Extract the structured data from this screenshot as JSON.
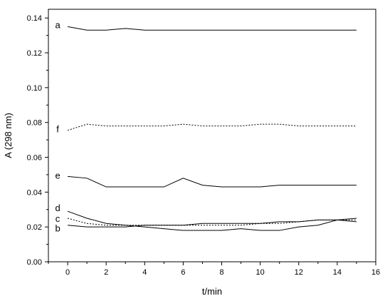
{
  "chart_data": {
    "type": "line",
    "xlabel": "t/min",
    "ylabel": "A (298 nm)",
    "xlim": [
      -1,
      16
    ],
    "ylim": [
      0,
      0.145
    ],
    "x_ticks": [
      "0",
      "2",
      "4",
      "6",
      "8",
      "10",
      "12",
      "14",
      "16"
    ],
    "y_ticks": [
      "0.00",
      "0.02",
      "0.04",
      "0.06",
      "0.08",
      "0.10",
      "0.12",
      "0.14"
    ],
    "grid": false,
    "series": [
      {
        "name": "a",
        "style": "solid",
        "x": [
          0,
          1,
          2,
          3,
          4,
          5,
          6,
          7,
          8,
          9,
          10,
          11,
          12,
          13,
          14,
          15
        ],
        "y": [
          0.135,
          0.133,
          0.133,
          0.134,
          0.133,
          0.133,
          0.133,
          0.133,
          0.133,
          0.133,
          0.133,
          0.133,
          0.133,
          0.133,
          0.133,
          0.133
        ]
      },
      {
        "name": "f",
        "style": "dotted",
        "x": [
          0,
          1,
          2,
          3,
          4,
          5,
          6,
          7,
          8,
          9,
          10,
          11,
          12,
          13,
          14,
          15
        ],
        "y": [
          0.0755,
          0.079,
          0.078,
          0.078,
          0.078,
          0.078,
          0.079,
          0.078,
          0.078,
          0.078,
          0.079,
          0.079,
          0.078,
          0.078,
          0.078,
          0.078
        ]
      },
      {
        "name": "e",
        "style": "solid",
        "x": [
          0,
          1,
          2,
          3,
          4,
          5,
          6,
          7,
          8,
          9,
          10,
          11,
          12,
          13,
          14,
          15
        ],
        "y": [
          0.049,
          0.048,
          0.043,
          0.043,
          0.043,
          0.043,
          0.048,
          0.044,
          0.043,
          0.043,
          0.043,
          0.044,
          0.044,
          0.044,
          0.044,
          0.044
        ]
      },
      {
        "name": "d",
        "style": "solid",
        "x": [
          0,
          1,
          2,
          3,
          4,
          5,
          6,
          7,
          8,
          9,
          10,
          11,
          12,
          13,
          14,
          15
        ],
        "y": [
          0.029,
          0.025,
          0.022,
          0.021,
          0.02,
          0.019,
          0.018,
          0.018,
          0.018,
          0.019,
          0.018,
          0.018,
          0.02,
          0.021,
          0.024,
          0.025
        ]
      },
      {
        "name": "c",
        "style": "dotted",
        "x": [
          0,
          1,
          2,
          3,
          4,
          5,
          6,
          7,
          8,
          9,
          10,
          11,
          12,
          13,
          14,
          15
        ],
        "y": [
          0.025,
          0.022,
          0.021,
          0.021,
          0.021,
          0.021,
          0.021,
          0.021,
          0.021,
          0.021,
          0.022,
          0.022,
          0.023,
          0.024,
          0.024,
          0.024
        ]
      },
      {
        "name": "b",
        "style": "solid",
        "x": [
          0,
          1,
          2,
          3,
          4,
          5,
          6,
          7,
          8,
          9,
          10,
          11,
          12,
          13,
          14,
          15
        ],
        "y": [
          0.021,
          0.02,
          0.02,
          0.02,
          0.021,
          0.021,
          0.021,
          0.022,
          0.022,
          0.022,
          0.022,
          0.023,
          0.023,
          0.024,
          0.024,
          0.023
        ]
      }
    ]
  }
}
